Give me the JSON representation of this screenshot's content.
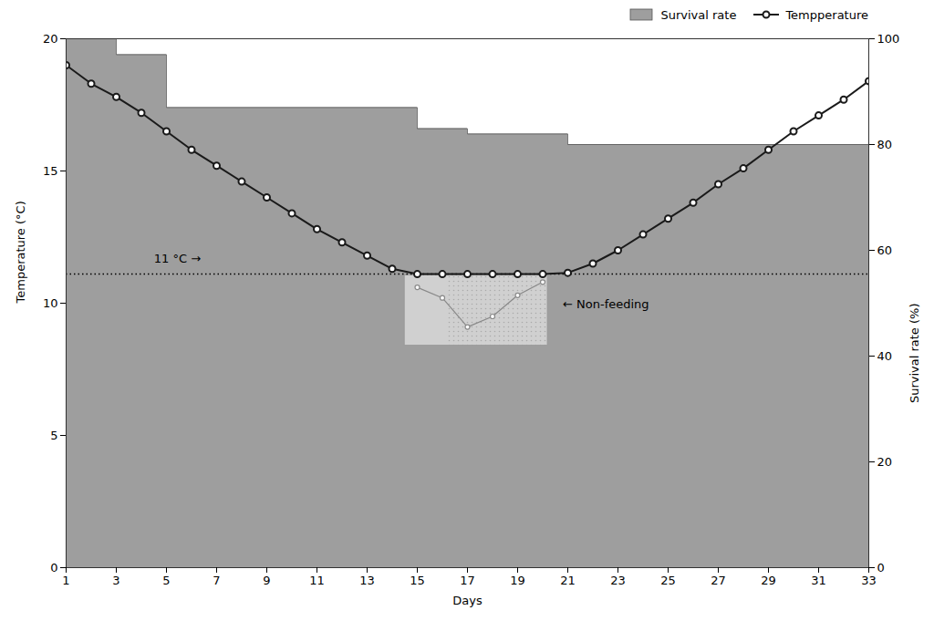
{
  "chart_data": {
    "type": "line",
    "xlabel": "Days",
    "ylabel": "Temperature (°C)",
    "y2label": "Survival rate (%)",
    "series": [
      {
        "name": "Survival rate",
        "type": "area",
        "axis": "y2",
        "color": "#9e9e9e",
        "x": [
          1,
          3,
          3,
          5,
          5,
          15,
          15,
          17,
          17,
          21,
          21,
          33
        ],
        "values": [
          100,
          100,
          97,
          97,
          87,
          87,
          83,
          83,
          82,
          82,
          80,
          80
        ]
      },
      {
        "name": "Tempperature",
        "type": "line",
        "color": "#1a1a1a",
        "marker": "circle",
        "x": [
          1,
          2,
          3,
          4,
          5,
          6,
          7,
          8,
          9,
          10,
          11,
          12,
          13,
          14,
          15,
          16,
          17,
          18,
          19,
          20,
          21,
          22,
          23,
          24,
          25,
          26,
          27,
          28,
          29,
          30,
          31,
          32,
          33
        ],
        "values": [
          19.0,
          18.3,
          17.8,
          17.2,
          16.5,
          15.8,
          15.2,
          14.6,
          14.0,
          13.4,
          12.8,
          12.3,
          11.8,
          11.3,
          11.1,
          11.1,
          11.1,
          11.1,
          11.1,
          11.1,
          11.15,
          11.5,
          12.0,
          12.6,
          13.2,
          13.8,
          14.5,
          15.1,
          15.8,
          16.5,
          17.1,
          17.7,
          18.4
        ]
      },
      {
        "type": "line",
        "color": "#888888",
        "marker": "circle",
        "x": [
          15,
          16,
          17,
          18,
          19,
          20
        ],
        "values": [
          10.6,
          10.2,
          9.1,
          9.5,
          10.3,
          10.8
        ]
      }
    ],
    "box": {
      "x": [
        14.5,
        20.2
      ],
      "y": [
        8.4,
        11.05
      ],
      "split": 16.2
    },
    "reference_lines": [
      {
        "y": 11.1,
        "line_style": "dotted"
      }
    ],
    "annotations": [
      {
        "text": "11 °C →",
        "x": 4.5,
        "y": 11.55
      },
      {
        "text": "← Non-feeding",
        "x": 20.8,
        "y": 9.8
      }
    ],
    "xlim": [
      1,
      33
    ],
    "xticks": [
      1,
      3,
      5,
      7,
      9,
      11,
      13,
      15,
      17,
      19,
      21,
      23,
      25,
      27,
      29,
      31,
      33
    ],
    "ylim": [
      0,
      20
    ],
    "yticks": [
      0,
      5,
      10,
      15,
      20
    ],
    "y2lim": [
      0,
      100
    ],
    "y2ticks": [
      0,
      20,
      40,
      60,
      80,
      100
    ],
    "legend": "upper right",
    "grid": false
  }
}
